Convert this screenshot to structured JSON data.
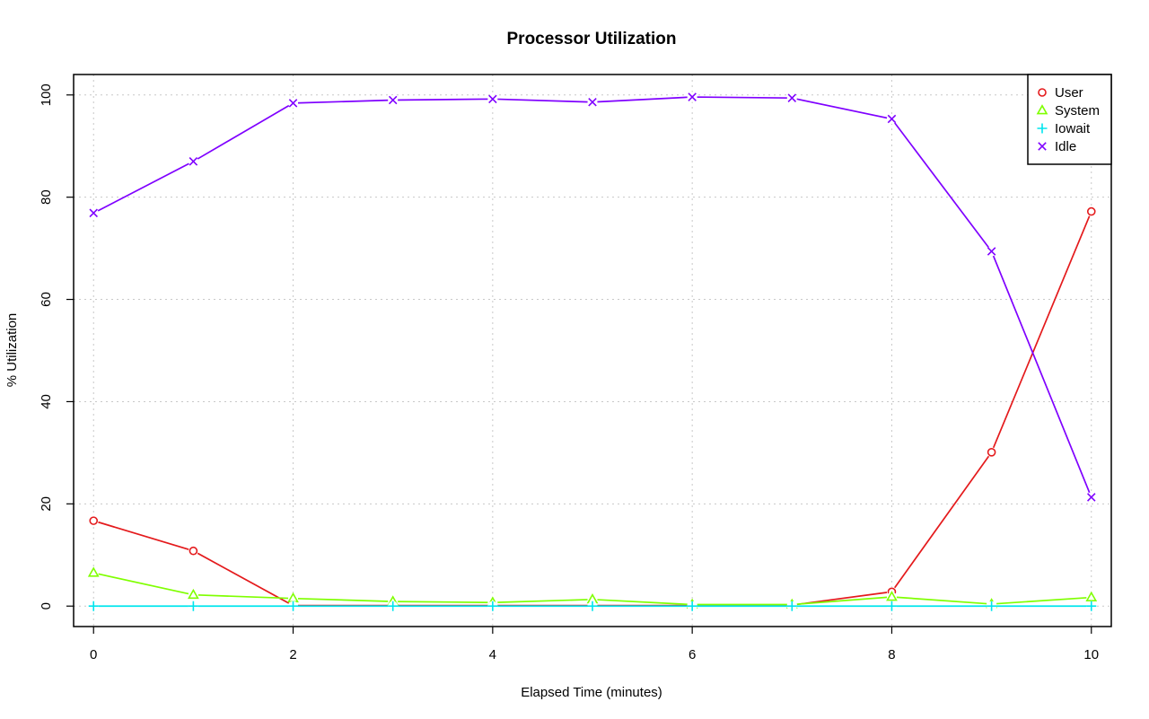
{
  "chart_data": {
    "type": "line",
    "title": "Processor Utilization",
    "xlabel": "Elapsed Time (minutes)",
    "ylabel": "% Utilization",
    "x": [
      0,
      1,
      2,
      3,
      4,
      5,
      6,
      7,
      8,
      9,
      10
    ],
    "xlim": [
      -0.2,
      10.2
    ],
    "ylim": [
      -4,
      104
    ],
    "xticks": [
      0,
      2,
      4,
      6,
      8,
      10
    ],
    "yticks": [
      0,
      20,
      40,
      60,
      80,
      100
    ],
    "grid": true,
    "legend_position": "top-right",
    "series": [
      {
        "name": "User",
        "color": "#e41a1c",
        "marker": "circle",
        "values": [
          16.7,
          10.8,
          0.1,
          0.1,
          0.1,
          0.1,
          0.1,
          0.2,
          2.8,
          30.1,
          77.2
        ]
      },
      {
        "name": "System",
        "color": "#7fff00",
        "marker": "triangle",
        "values": [
          6.5,
          2.2,
          1.5,
          0.9,
          0.7,
          1.3,
          0.3,
          0.3,
          1.8,
          0.4,
          1.7
        ]
      },
      {
        "name": "Iowait",
        "color": "#00e5ee",
        "marker": "plus",
        "values": [
          0,
          0,
          0,
          0,
          0,
          0,
          0,
          0,
          0,
          0,
          0
        ]
      },
      {
        "name": "Idle",
        "color": "#7f00ff",
        "marker": "cross",
        "values": [
          76.9,
          87.0,
          98.4,
          99.0,
          99.2,
          98.6,
          99.6,
          99.4,
          95.3,
          69.4,
          21.3
        ]
      }
    ]
  }
}
